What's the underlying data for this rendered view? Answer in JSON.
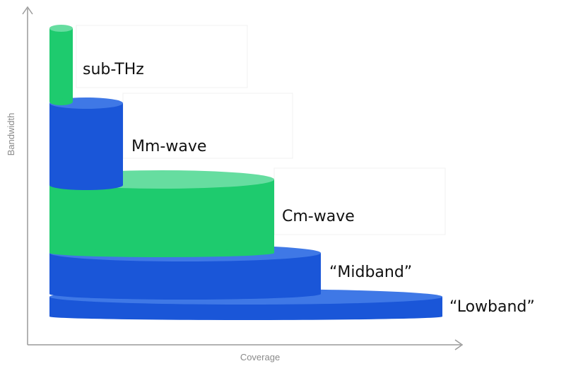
{
  "axes": {
    "x_label": "Coverage",
    "y_label": "Bandwidth"
  },
  "colors": {
    "blue": "#1a56d8",
    "blue_top": "#3f78e6",
    "green": "#1ecb6e",
    "green_top": "#66dda0",
    "axis": "#9a9a9a"
  },
  "bands": [
    {
      "id": "lowband",
      "label": "“Lowband”",
      "color": "blue"
    },
    {
      "id": "midband",
      "label": "“Midband”",
      "color": "blue"
    },
    {
      "id": "cm-wave",
      "label": "Cm-wave",
      "color": "green"
    },
    {
      "id": "mm-wave",
      "label": "Mm-wave",
      "color": "blue"
    },
    {
      "id": "sub-thz",
      "label": "sub-THz",
      "color": "green"
    }
  ]
}
